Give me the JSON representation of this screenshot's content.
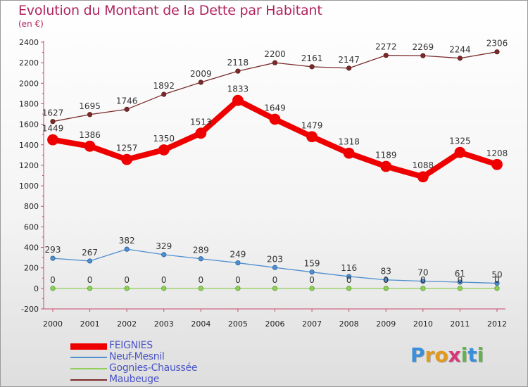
{
  "title": "Evolution du Montant de la Dette par Habitant",
  "subtitle": "(en €)",
  "logo": {
    "letters": [
      "P",
      "r",
      "o",
      "x",
      "i",
      "t",
      "i"
    ],
    "colors": [
      "#3a8fd8",
      "#e39a1c",
      "#e39a1c",
      "#d8367a",
      "#62b34a",
      "#3a8fd8",
      "#62b34a"
    ]
  },
  "chart_data": {
    "type": "line",
    "x": [
      "2000",
      "2001",
      "2002",
      "2003",
      "2004",
      "2005",
      "2006",
      "2007",
      "2008",
      "2009",
      "2010",
      "2011",
      "2012"
    ],
    "ylim": [
      -200,
      2400
    ],
    "yticks": [
      "-200",
      "0",
      "200",
      "400",
      "600",
      "800",
      "1000",
      "1200",
      "1400",
      "1600",
      "1800",
      "2000",
      "2200",
      "2400"
    ],
    "grid": false,
    "legend_position": "bottom-left",
    "series": [
      {
        "name": "FEIGNIES",
        "color": "#ee0000",
        "values": [
          1449,
          1386,
          1257,
          1350,
          1513,
          1833,
          1649,
          1479,
          1318,
          1189,
          1088,
          1325,
          1208
        ],
        "labels": [
          "1449",
          "1386",
          "1257",
          "1350",
          "1513",
          "1833",
          "1649",
          "1479",
          "1318",
          "1189",
          "1088",
          "1325",
          "1208"
        ]
      },
      {
        "name": "Neuf-Mesnil",
        "color": "#4f8fd0",
        "values": [
          293,
          267,
          382,
          329,
          289,
          249,
          203,
          159,
          116,
          83,
          70,
          61,
          50
        ],
        "labels": [
          "293",
          "267",
          "382",
          "329",
          "289",
          "249",
          "203",
          "159",
          "116",
          "83",
          "70",
          "61",
          "50"
        ]
      },
      {
        "name": "Gognies-Chaussée",
        "color": "#8ed05a",
        "values": [
          0,
          0,
          0,
          0,
          0,
          0,
          0,
          0,
          0,
          0,
          0,
          0,
          0
        ],
        "labels": [
          "0",
          "0",
          "0",
          "0",
          "0",
          "0",
          "0",
          "0",
          "0",
          "0",
          "0",
          "0",
          "0"
        ]
      },
      {
        "name": "Maubeuge",
        "color": "#7b2a2a",
        "values": [
          1627,
          1695,
          1746,
          1892,
          2009,
          2118,
          2200,
          2161,
          2147,
          2272,
          2269,
          2244,
          2306
        ],
        "labels": [
          "1627",
          "1695",
          "1746",
          "1892",
          "2009",
          "2118",
          "2200",
          "2161",
          "2147",
          "2272",
          "2269",
          "2244",
          "2306"
        ]
      }
    ]
  }
}
